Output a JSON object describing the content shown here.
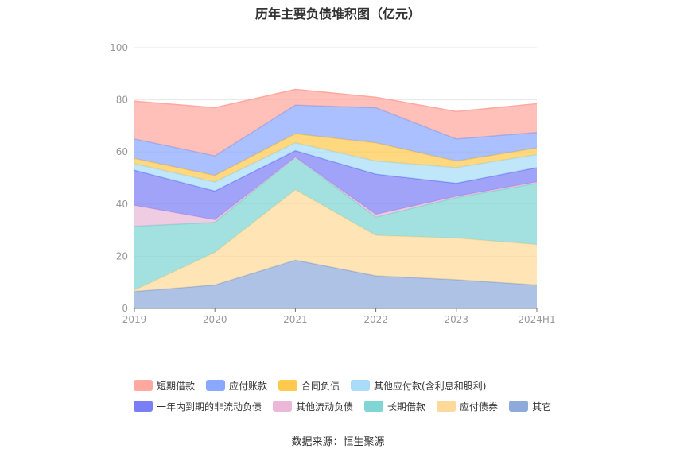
{
  "title": "历年主要负债堆积图（亿元）",
  "source": "数据来源：恒生聚源",
  "chart_data": {
    "type": "area",
    "stacked": true,
    "categories": [
      "2019",
      "2020",
      "2021",
      "2022",
      "2023",
      "2024H1"
    ],
    "ylim": [
      0,
      100
    ],
    "yticks": [
      0,
      20,
      40,
      60,
      80,
      100
    ],
    "grid": true,
    "legend_position": "bottom",
    "series": [
      {
        "name": "其它",
        "color": "#8eaadb",
        "values": [
          6.5,
          9.0,
          18.5,
          12.5,
          11.0,
          9.0
        ]
      },
      {
        "name": "应付债券",
        "color": "#ffd99a",
        "values": [
          0.5,
          12.5,
          27.0,
          15.5,
          16.0,
          15.5
        ]
      },
      {
        "name": "长期借款",
        "color": "#7fd6d4",
        "values": [
          24.5,
          11.5,
          12.5,
          7.0,
          15.5,
          23.5
        ]
      },
      {
        "name": "其他流动负债",
        "color": "#eab8d8",
        "values": [
          8.0,
          1.0,
          0.0,
          1.0,
          0.5,
          0.5
        ]
      },
      {
        "name": "一年内到期的非流动负债",
        "color": "#7b7ff5",
        "values": [
          13.5,
          11.0,
          2.5,
          15.5,
          5.0,
          5.5
        ]
      },
      {
        "name": "其他应付款(含利息和股利)",
        "color": "#a8dcf8",
        "values": [
          2.5,
          3.5,
          3.0,
          5.0,
          6.0,
          5.0
        ]
      },
      {
        "name": "合同负债",
        "color": "#ffc94d",
        "values": [
          2.0,
          2.5,
          3.5,
          7.0,
          2.5,
          2.5
        ]
      },
      {
        "name": "应付账款",
        "color": "#8aa8ff",
        "values": [
          7.5,
          7.5,
          11.0,
          13.5,
          8.5,
          6.0
        ]
      },
      {
        "name": "短期借款",
        "color": "#ffa8a0",
        "values": [
          14.5,
          18.5,
          6.0,
          4.0,
          10.5,
          11.0
        ]
      }
    ]
  },
  "legend": {
    "row1": [
      {
        "name": "短期借款",
        "color": "#ffa8a0"
      },
      {
        "name": "应付账款",
        "color": "#8aa8ff"
      },
      {
        "name": "合同负债",
        "color": "#ffc94d"
      },
      {
        "name": "其他应付款(含利息和股利)",
        "color": "#a8dcf8"
      }
    ],
    "row2": [
      {
        "name": "一年内到期的非流动负债",
        "color": "#7b7ff5"
      },
      {
        "name": "其他流动负债",
        "color": "#eab8d8"
      },
      {
        "name": "长期借款",
        "color": "#7fd6d4"
      },
      {
        "name": "应付债券",
        "color": "#ffd99a"
      },
      {
        "name": "其它",
        "color": "#8eaadb"
      }
    ]
  }
}
